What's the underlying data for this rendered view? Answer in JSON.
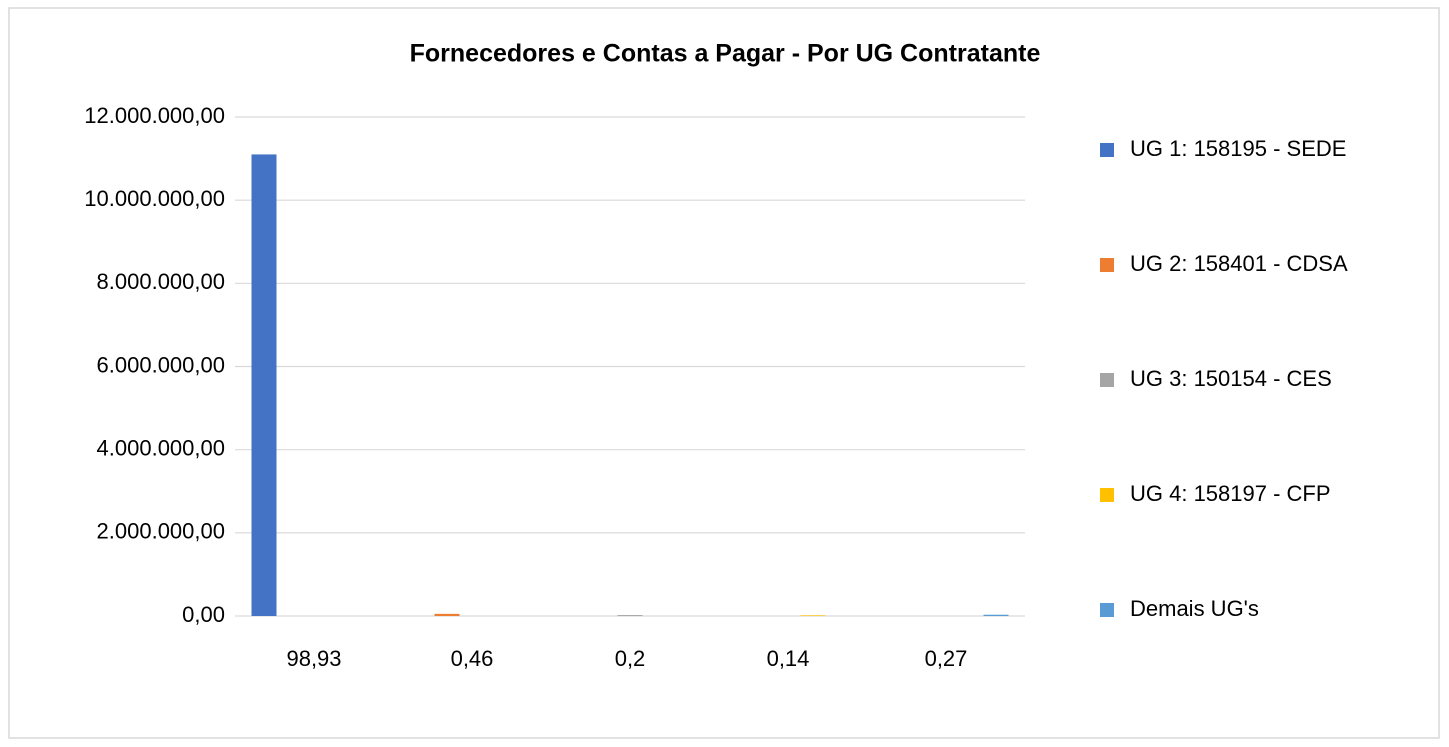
{
  "chart_data": {
    "type": "bar",
    "title": "Fornecedores e Contas a Pagar - Por UG Contratante",
    "categories": [
      "98,93",
      "0,46",
      "0,2",
      "0,14",
      "0,27"
    ],
    "series": [
      {
        "name": "UG 1: 158195 - SEDE",
        "color": "#4472c4",
        "values": [
          11100000,
          null,
          null,
          null,
          null
        ]
      },
      {
        "name": "UG 2: 158401 - CDSA",
        "color": "#ed7d31",
        "values": [
          null,
          51600,
          null,
          null,
          null
        ]
      },
      {
        "name": "UG 3: 150154 - CES",
        "color": "#a5a5a5",
        "values": [
          null,
          null,
          22400,
          null,
          null
        ]
      },
      {
        "name": "UG 4: 158197 - CFP",
        "color": "#ffc000",
        "values": [
          null,
          null,
          null,
          15700,
          null
        ]
      },
      {
        "name": "Demais UG's",
        "color": "#5b9bd5",
        "values": [
          null,
          null,
          null,
          null,
          30300
        ]
      }
    ],
    "ylim": [
      0,
      12000000
    ],
    "yticks": [
      {
        "value": 0,
        "label": "0,00"
      },
      {
        "value": 2000000,
        "label": "2.000.000,00"
      },
      {
        "value": 4000000,
        "label": "4.000.000,00"
      },
      {
        "value": 6000000,
        "label": "6.000.000,00"
      },
      {
        "value": 8000000,
        "label": "8.000.000,00"
      },
      {
        "value": 10000000,
        "label": "10.000.000,00"
      },
      {
        "value": 12000000,
        "label": "12.000.000,00"
      }
    ],
    "grid": true,
    "legend": "right"
  }
}
